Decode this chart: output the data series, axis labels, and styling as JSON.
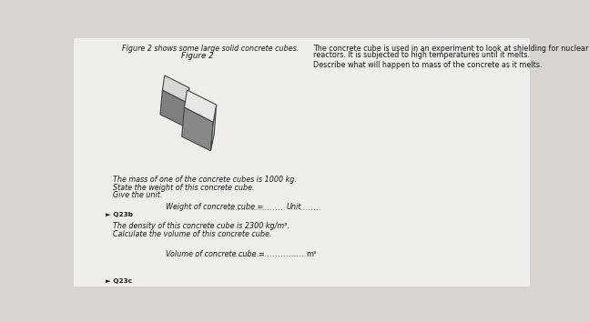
{
  "bg_color": "#d8d5d0",
  "paper_color": "#f0eeeb",
  "title_italic": "Figure 2",
  "header_text": "Figure 2 shows some large solid concrete cubes.",
  "right_text_line1": "The concrete cube is used in an experiment to look at shielding for nuclear",
  "right_text_line2": "reactors. It is subjected to high temperatures until it melts.",
  "right_text_line3": "Describe what will happen to mass of the concrete as it melts.",
  "body_text1": "The mass of one of the concrete cubes is 1000 kg.",
  "body_text2": "State the weight of this concrete cube.",
  "body_text3": "Give the unit.",
  "weight_label": "Weight of concrete cube = ",
  "unit_label": "Unit",
  "q23b_label": "► Q23b",
  "density_text": "The density of this concrete cube is 2300 kg/m³.",
  "calc_text": "Calculate the volume of this concrete cube.",
  "volume_label": "Volume of concrete cube = ",
  "unit_m3": "m³",
  "q23c_label": "► Q23c",
  "dotted_line_color": "#777777",
  "text_color": "#1a1a1a",
  "cube_face_top": "#e8e8e8",
  "cube_face_left": "#888888",
  "cube_face_right": "#c0c0c0",
  "cube2_face_top": "#d8d8d8",
  "cube2_face_left": "#808080",
  "cube2_face_right": "#b0b0b0",
  "edge_color": "#444444"
}
